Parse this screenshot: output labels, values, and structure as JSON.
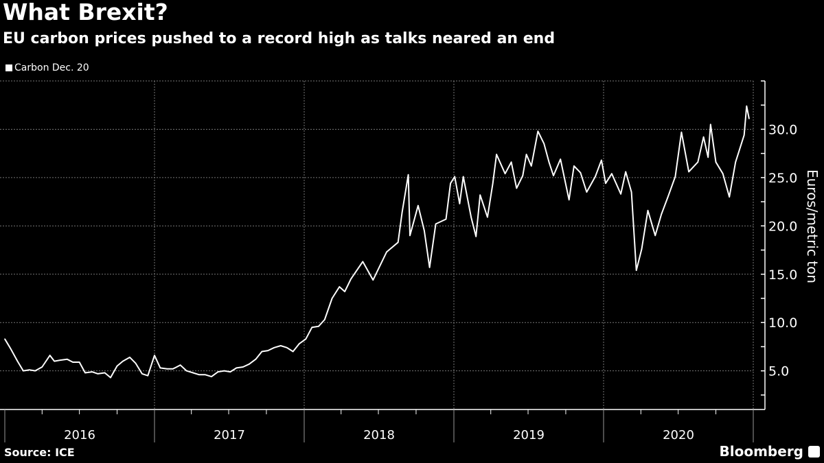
{
  "chart_data": {
    "type": "line",
    "title": "What Brexit?",
    "subtitle": "EU carbon prices pushed to a record high as talks neared an end",
    "ylabel": "Euros/metric ton",
    "xlabel": "",
    "ylim": [
      1,
      35
    ],
    "xlim": [
      "2016-01-01",
      "2021-01-01"
    ],
    "yticks": [
      "5.0",
      "10.0",
      "15.0",
      "20.0",
      "25.0",
      "30.0"
    ],
    "xticks": [
      "2016",
      "2017",
      "2018",
      "2019",
      "2020"
    ],
    "grid": true,
    "legend_position": "top-left",
    "source": "Source: ICE",
    "brand": "Bloomberg",
    "colors": {
      "background": "#000000",
      "line": "#ffffff",
      "grid": "#777777"
    },
    "series": [
      {
        "name": "Carbon Dec. 20",
        "points": [
          [
            "2016-01-01",
            8.3
          ],
          [
            "2016-01-15",
            7.3
          ],
          [
            "2016-02-01",
            6.0
          ],
          [
            "2016-02-15",
            5.0
          ],
          [
            "2016-03-01",
            5.1
          ],
          [
            "2016-03-15",
            5.0
          ],
          [
            "2016-04-01",
            5.4
          ],
          [
            "2016-04-20",
            6.6
          ],
          [
            "2016-05-01",
            6.0
          ],
          [
            "2016-05-15",
            6.1
          ],
          [
            "2016-06-01",
            6.2
          ],
          [
            "2016-06-15",
            5.9
          ],
          [
            "2016-07-01",
            5.9
          ],
          [
            "2016-07-15",
            4.8
          ],
          [
            "2016-08-01",
            4.9
          ],
          [
            "2016-08-15",
            4.7
          ],
          [
            "2016-09-01",
            4.8
          ],
          [
            "2016-09-15",
            4.3
          ],
          [
            "2016-10-01",
            5.5
          ],
          [
            "2016-10-15",
            6.0
          ],
          [
            "2016-11-01",
            6.4
          ],
          [
            "2016-11-15",
            5.8
          ],
          [
            "2016-12-01",
            4.7
          ],
          [
            "2016-12-15",
            4.5
          ],
          [
            "2017-01-01",
            6.6
          ],
          [
            "2017-01-15",
            5.3
          ],
          [
            "2017-02-01",
            5.2
          ],
          [
            "2017-02-15",
            5.2
          ],
          [
            "2017-03-05",
            5.6
          ],
          [
            "2017-03-20",
            5.0
          ],
          [
            "2017-04-05",
            4.8
          ],
          [
            "2017-04-20",
            4.6
          ],
          [
            "2017-05-05",
            4.6
          ],
          [
            "2017-05-20",
            4.4
          ],
          [
            "2017-06-05",
            4.9
          ],
          [
            "2017-06-20",
            5.0
          ],
          [
            "2017-07-05",
            4.9
          ],
          [
            "2017-07-20",
            5.3
          ],
          [
            "2017-08-05",
            5.4
          ],
          [
            "2017-08-20",
            5.7
          ],
          [
            "2017-09-05",
            6.2
          ],
          [
            "2017-09-20",
            7.0
          ],
          [
            "2017-10-05",
            7.1
          ],
          [
            "2017-10-20",
            7.4
          ],
          [
            "2017-11-05",
            7.6
          ],
          [
            "2017-11-20",
            7.4
          ],
          [
            "2017-12-05",
            7.0
          ],
          [
            "2017-12-20",
            7.8
          ],
          [
            "2018-01-05",
            8.3
          ],
          [
            "2018-01-20",
            9.5
          ],
          [
            "2018-02-05",
            9.6
          ],
          [
            "2018-02-20",
            10.3
          ],
          [
            "2018-03-10",
            12.5
          ],
          [
            "2018-03-28",
            13.7
          ],
          [
            "2018-04-10",
            13.2
          ],
          [
            "2018-04-25",
            14.5
          ],
          [
            "2018-05-24",
            16.3
          ],
          [
            "2018-06-18",
            14.4
          ],
          [
            "2018-07-21",
            17.3
          ],
          [
            "2018-08-18",
            18.3
          ],
          [
            "2018-08-28",
            21.4
          ],
          [
            "2018-09-12",
            25.3
          ],
          [
            "2018-09-16",
            19.0
          ],
          [
            "2018-10-06",
            22.1
          ],
          [
            "2018-10-21",
            19.5
          ],
          [
            "2018-11-03",
            15.7
          ],
          [
            "2018-11-18",
            20.2
          ],
          [
            "2018-12-13",
            20.7
          ],
          [
            "2018-12-24",
            24.4
          ],
          [
            "2019-01-03",
            25.1
          ],
          [
            "2019-01-15",
            22.3
          ],
          [
            "2019-01-24",
            25.1
          ],
          [
            "2019-02-12",
            20.9
          ],
          [
            "2019-02-24",
            18.9
          ],
          [
            "2019-03-06",
            23.2
          ],
          [
            "2019-03-24",
            20.9
          ],
          [
            "2019-04-06",
            24.4
          ],
          [
            "2019-04-15",
            27.4
          ],
          [
            "2019-05-06",
            25.4
          ],
          [
            "2019-05-21",
            26.6
          ],
          [
            "2019-06-03",
            23.9
          ],
          [
            "2019-06-18",
            25.2
          ],
          [
            "2019-06-27",
            27.4
          ],
          [
            "2019-07-09",
            26.2
          ],
          [
            "2019-07-25",
            29.8
          ],
          [
            "2019-08-09",
            28.5
          ],
          [
            "2019-08-21",
            26.6
          ],
          [
            "2019-09-01",
            25.2
          ],
          [
            "2019-09-18",
            26.9
          ],
          [
            "2019-10-09",
            22.7
          ],
          [
            "2019-10-21",
            26.2
          ],
          [
            "2019-11-06",
            25.5
          ],
          [
            "2019-11-21",
            23.5
          ],
          [
            "2019-12-12",
            25.1
          ],
          [
            "2019-12-27",
            26.8
          ],
          [
            "2020-01-06",
            24.4
          ],
          [
            "2020-01-21",
            25.4
          ],
          [
            "2020-02-12",
            23.3
          ],
          [
            "2020-02-24",
            25.6
          ],
          [
            "2020-03-09",
            23.5
          ],
          [
            "2020-03-21",
            15.4
          ],
          [
            "2020-04-03",
            17.6
          ],
          [
            "2020-04-18",
            21.6
          ],
          [
            "2020-05-06",
            19.0
          ],
          [
            "2020-05-21",
            21.2
          ],
          [
            "2020-06-06",
            23.0
          ],
          [
            "2020-06-24",
            25.1
          ],
          [
            "2020-07-09",
            29.7
          ],
          [
            "2020-07-27",
            25.6
          ],
          [
            "2020-08-18",
            26.6
          ],
          [
            "2020-09-01",
            29.2
          ],
          [
            "2020-09-12",
            27.1
          ],
          [
            "2020-09-18",
            30.5
          ],
          [
            "2020-10-01",
            26.6
          ],
          [
            "2020-10-18",
            25.4
          ],
          [
            "2020-11-03",
            23.0
          ],
          [
            "2020-11-18",
            26.6
          ],
          [
            "2020-12-09",
            29.4
          ],
          [
            "2020-12-15",
            32.4
          ],
          [
            "2020-12-21",
            31.1
          ]
        ]
      }
    ]
  }
}
